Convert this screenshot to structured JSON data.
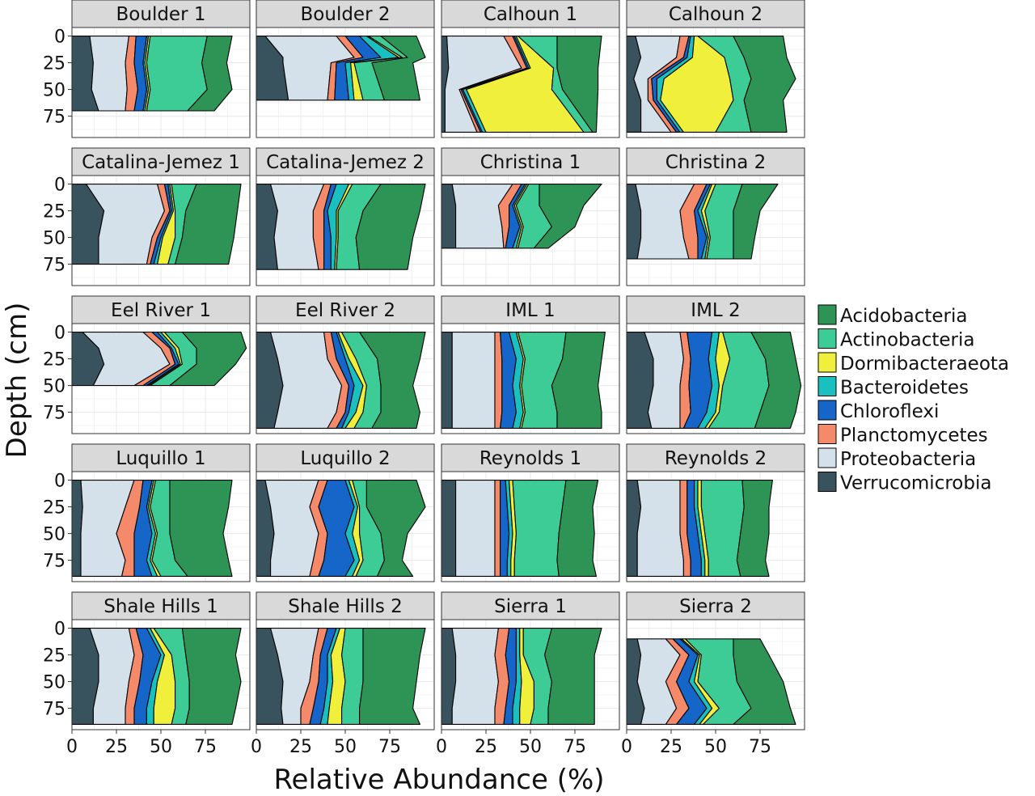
{
  "chart_data": {
    "type": "area",
    "layout": "faceted 5x4, stacked horizontal area (relative abundance vs depth)",
    "xlabel": "Relative Abundance (%)",
    "ylabel": "Depth (cm)",
    "xlim": [
      0,
      100
    ],
    "ylim": [
      95,
      -8
    ],
    "xticks": [
      0,
      25,
      50,
      75
    ],
    "yticks": [
      0,
      25,
      50,
      75
    ],
    "grid": true,
    "legend_position": "right",
    "stack_order": [
      "Verrucomicrobia",
      "Proteobacteria",
      "Planctomycetes",
      "Chloroflexi",
      "Bacteroidetes",
      "Dormibacteraeota",
      "Actinobacteria",
      "Acidobacteria"
    ],
    "legend": [
      {
        "name": "Acidobacteria",
        "color": "#2e9456"
      },
      {
        "name": "Actinobacteria",
        "color": "#3dcc96"
      },
      {
        "name": "Dormibacteraeota",
        "color": "#f0f03c"
      },
      {
        "name": "Bacteroidetes",
        "color": "#1abfbf"
      },
      {
        "name": "Chloroflexi",
        "color": "#1566c8"
      },
      {
        "name": "Planctomycetes",
        "color": "#f48a6a"
      },
      {
        "name": "Proteobacteria",
        "color": "#d5e1ea"
      },
      {
        "name": "Verrucomicrobia",
        "color": "#38535d"
      }
    ],
    "panels": [
      {
        "title": "Boulder 1",
        "depths": [
          0,
          25,
          50,
          70
        ],
        "cum": [
          [
            10,
            32,
            36,
            42,
            43,
            44,
            76,
            90
          ],
          [
            12,
            30,
            35,
            40,
            41,
            42,
            73,
            87
          ],
          [
            11,
            31,
            37,
            42,
            43,
            44,
            76,
            90
          ],
          [
            15,
            30,
            35,
            40,
            41,
            42,
            65,
            80
          ]
        ]
      },
      {
        "title": "Boulder 2",
        "depths": [
          0,
          20,
          25,
          60
        ],
        "cum": [
          [
            5,
            45,
            50,
            58,
            62,
            63,
            70,
            90
          ],
          [
            15,
            55,
            60,
            70,
            80,
            82,
            85,
            95
          ],
          [
            15,
            42,
            45,
            50,
            53,
            55,
            65,
            88
          ],
          [
            18,
            40,
            44,
            52,
            55,
            60,
            72,
            92
          ]
        ]
      },
      {
        "title": "Calhoun 1",
        "depths": [
          0,
          30,
          50,
          90
        ],
        "cum": [
          [
            3,
            35,
            40,
            41,
            42,
            43,
            65,
            90
          ],
          [
            4,
            45,
            48,
            49,
            50,
            63,
            65,
            88
          ],
          [
            2,
            10,
            11,
            12,
            14,
            62,
            68,
            88
          ],
          [
            2,
            20,
            22,
            23,
            25,
            80,
            85,
            87
          ]
        ]
      },
      {
        "title": "Calhoun 2",
        "depths": [
          0,
          20,
          40,
          60,
          90
        ],
        "cum": [
          [
            5,
            30,
            35,
            36,
            38,
            40,
            60,
            88
          ],
          [
            8,
            28,
            32,
            34,
            37,
            55,
            66,
            90
          ],
          [
            4,
            12,
            14,
            17,
            21,
            58,
            70,
            95
          ],
          [
            8,
            12,
            15,
            17,
            19,
            60,
            66,
            88
          ],
          [
            8,
            25,
            28,
            30,
            32,
            50,
            70,
            90
          ]
        ]
      },
      {
        "title": "Catalina-Jemez 1",
        "depths": [
          0,
          25,
          50,
          75
        ],
        "cum": [
          [
            8,
            48,
            52,
            54,
            55,
            56,
            70,
            95
          ],
          [
            18,
            52,
            55,
            56,
            57,
            58,
            64,
            93
          ],
          [
            15,
            45,
            48,
            50,
            51,
            58,
            62,
            91
          ],
          [
            15,
            42,
            44,
            46,
            48,
            54,
            58,
            88
          ]
        ]
      },
      {
        "title": "Catalina-Jemez 2",
        "depths": [
          0,
          25,
          50,
          80
        ],
        "cum": [
          [
            8,
            38,
            42,
            45,
            52,
            54,
            70,
            95
          ],
          [
            12,
            32,
            38,
            40,
            45,
            46,
            60,
            92
          ],
          [
            10,
            32,
            38,
            42,
            45,
            46,
            56,
            88
          ],
          [
            12,
            35,
            38,
            42,
            44,
            45,
            58,
            85
          ]
        ]
      },
      {
        "title": "Christina 1",
        "depths": [
          0,
          20,
          40,
          60
        ],
        "cum": [
          [
            6,
            40,
            45,
            47,
            48,
            49,
            55,
            90
          ],
          [
            8,
            32,
            38,
            40,
            41,
            42,
            55,
            80
          ],
          [
            8,
            34,
            38,
            44,
            45,
            46,
            62,
            75
          ],
          [
            8,
            35,
            36,
            40,
            42,
            43,
            52,
            60
          ]
        ]
      },
      {
        "title": "Christina 2",
        "depths": [
          0,
          25,
          50,
          70
        ],
        "cum": [
          [
            5,
            38,
            45,
            47,
            48,
            50,
            65,
            85
          ],
          [
            8,
            30,
            38,
            40,
            42,
            44,
            60,
            75
          ],
          [
            8,
            32,
            40,
            45,
            46,
            47,
            60,
            72
          ],
          [
            6,
            35,
            40,
            42,
            44,
            45,
            60,
            70
          ]
        ]
      },
      {
        "title": "Eel River 1",
        "depths": [
          0,
          15,
          30,
          50
        ],
        "cum": [
          [
            6,
            40,
            45,
            48,
            50,
            52,
            62,
            95
          ],
          [
            15,
            50,
            55,
            56,
            58,
            60,
            70,
            98
          ],
          [
            18,
            55,
            58,
            60,
            61,
            62,
            70,
            92
          ],
          [
            12,
            35,
            40,
            42,
            43,
            44,
            55,
            80
          ]
        ]
      },
      {
        "title": "Eel River 2",
        "depths": [
          0,
          25,
          50,
          75,
          90
        ],
        "cum": [
          [
            8,
            38,
            42,
            45,
            46,
            48,
            58,
            95
          ],
          [
            12,
            40,
            45,
            50,
            52,
            56,
            68,
            92
          ],
          [
            15,
            48,
            52,
            55,
            60,
            62,
            70,
            88
          ],
          [
            12,
            45,
            50,
            52,
            56,
            60,
            70,
            92
          ],
          [
            10,
            40,
            45,
            48,
            50,
            55,
            65,
            90
          ]
        ]
      },
      {
        "title": "IML 1",
        "depths": [
          0,
          25,
          50,
          75,
          90
        ],
        "cum": [
          [
            6,
            30,
            33,
            38,
            42,
            43,
            70,
            92
          ],
          [
            6,
            30,
            34,
            42,
            46,
            47,
            68,
            90
          ],
          [
            6,
            30,
            34,
            40,
            44,
            45,
            62,
            88
          ],
          [
            6,
            30,
            34,
            42,
            46,
            47,
            65,
            90
          ],
          [
            6,
            30,
            33,
            40,
            44,
            45,
            65,
            90
          ]
        ]
      },
      {
        "title": "IML 2",
        "depths": [
          0,
          25,
          50,
          75,
          90
        ],
        "cum": [
          [
            10,
            30,
            34,
            48,
            52,
            54,
            70,
            92
          ],
          [
            15,
            32,
            36,
            46,
            50,
            58,
            78,
            95
          ],
          [
            15,
            30,
            35,
            48,
            52,
            54,
            80,
            98
          ],
          [
            12,
            30,
            36,
            45,
            50,
            52,
            75,
            95
          ],
          [
            14,
            30,
            32,
            40,
            44,
            46,
            72,
            92
          ]
        ]
      },
      {
        "title": "Luquillo 1",
        "depths": [
          0,
          25,
          50,
          75,
          90
        ],
        "cum": [
          [
            5,
            35,
            40,
            45,
            46,
            47,
            55,
            90
          ],
          [
            6,
            30,
            38,
            42,
            43,
            44,
            55,
            88
          ],
          [
            5,
            25,
            35,
            45,
            47,
            48,
            55,
            85
          ],
          [
            5,
            30,
            35,
            42,
            44,
            45,
            58,
            88
          ],
          [
            5,
            28,
            35,
            45,
            48,
            50,
            65,
            90
          ]
        ]
      },
      {
        "title": "Luquillo 2",
        "depths": [
          0,
          25,
          50,
          75,
          90
        ],
        "cum": [
          [
            5,
            35,
            40,
            50,
            52,
            54,
            62,
            90
          ],
          [
            8,
            30,
            35,
            55,
            57,
            58,
            62,
            95
          ],
          [
            10,
            35,
            40,
            50,
            54,
            58,
            70,
            85
          ],
          [
            8,
            32,
            38,
            55,
            58,
            60,
            72,
            82
          ],
          [
            8,
            30,
            35,
            50,
            54,
            56,
            68,
            88
          ]
        ]
      },
      {
        "title": "Reynolds 1",
        "depths": [
          0,
          25,
          50,
          75,
          90
        ],
        "cum": [
          [
            8,
            30,
            33,
            36,
            38,
            40,
            70,
            88
          ],
          [
            8,
            30,
            33,
            37,
            39,
            41,
            68,
            85
          ],
          [
            8,
            30,
            33,
            38,
            40,
            42,
            66,
            86
          ],
          [
            8,
            30,
            33,
            37,
            39,
            41,
            65,
            85
          ],
          [
            8,
            30,
            33,
            37,
            39,
            41,
            66,
            87
          ]
        ]
      },
      {
        "title": "Reynolds 2",
        "depths": [
          0,
          25,
          50,
          75,
          90
        ],
        "cum": [
          [
            6,
            30,
            34,
            38,
            40,
            42,
            65,
            82
          ],
          [
            8,
            30,
            34,
            38,
            40,
            42,
            66,
            80
          ],
          [
            6,
            30,
            34,
            40,
            42,
            44,
            64,
            80
          ],
          [
            6,
            32,
            36,
            42,
            44,
            46,
            62,
            78
          ],
          [
            6,
            32,
            36,
            42,
            44,
            46,
            64,
            80
          ]
        ]
      },
      {
        "title": "Shale Hills 1",
        "depths": [
          0,
          25,
          50,
          75,
          90
        ],
        "cum": [
          [
            10,
            32,
            36,
            42,
            44,
            46,
            62,
            95
          ],
          [
            15,
            35,
            40,
            50,
            52,
            56,
            64,
            92
          ],
          [
            15,
            32,
            38,
            45,
            48,
            58,
            66,
            95
          ],
          [
            12,
            30,
            35,
            42,
            46,
            58,
            66,
            92
          ],
          [
            12,
            30,
            35,
            42,
            46,
            56,
            64,
            90
          ]
        ]
      },
      {
        "title": "Shale Hills 2",
        "depths": [
          0,
          25,
          50,
          75,
          90
        ],
        "cum": [
          [
            8,
            35,
            40,
            45,
            47,
            50,
            60,
            95
          ],
          [
            12,
            32,
            36,
            40,
            42,
            48,
            60,
            92
          ],
          [
            15,
            30,
            35,
            40,
            43,
            50,
            60,
            90
          ],
          [
            14,
            25,
            32,
            38,
            41,
            48,
            58,
            88
          ],
          [
            15,
            25,
            30,
            36,
            40,
            48,
            58,
            92
          ]
        ]
      },
      {
        "title": "Sierra 1",
        "depths": [
          0,
          25,
          50,
          75,
          90
        ],
        "cum": [
          [
            6,
            32,
            38,
            42,
            44,
            46,
            62,
            90
          ],
          [
            8,
            30,
            36,
            42,
            44,
            46,
            58,
            86
          ],
          [
            8,
            32,
            38,
            42,
            45,
            52,
            62,
            86
          ],
          [
            6,
            30,
            36,
            40,
            44,
            52,
            60,
            86
          ],
          [
            6,
            30,
            35,
            40,
            44,
            50,
            60,
            86
          ]
        ]
      },
      {
        "title": "Sierra 2",
        "depths": [
          10,
          25,
          50,
          75,
          90
        ],
        "cum": [
          [
            6,
            22,
            26,
            30,
            31,
            33,
            60,
            75
          ],
          [
            8,
            30,
            35,
            40,
            41,
            42,
            60,
            80
          ],
          [
            6,
            22,
            28,
            35,
            38,
            40,
            62,
            88
          ],
          [
            10,
            28,
            35,
            45,
            48,
            52,
            70,
            92
          ],
          [
            8,
            22,
            28,
            38,
            41,
            43,
            60,
            95
          ]
        ]
      }
    ]
  }
}
